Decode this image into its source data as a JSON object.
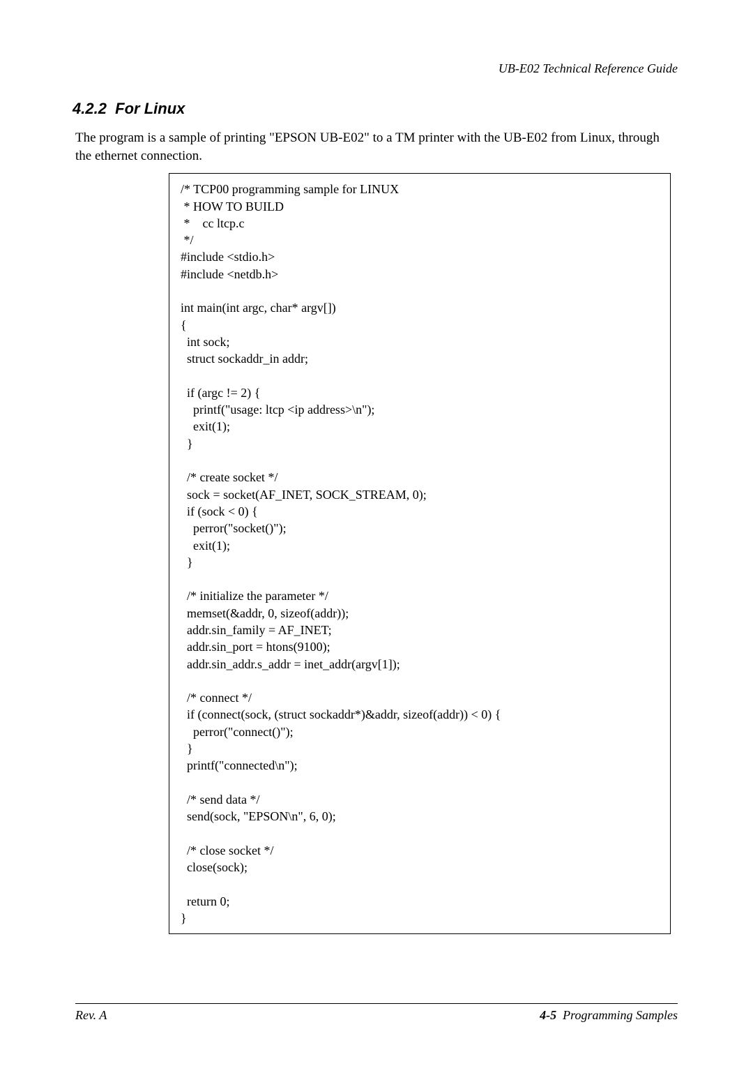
{
  "header": {
    "doc_title": "UB-E02 Technical Reference Guide"
  },
  "section": {
    "number": "4.2.2",
    "title": "For Linux"
  },
  "intro": "The program is a sample of printing \"EPSON UB-E02\" to a TM printer with the UB-E02 from Linux, through the ethernet connection.",
  "code": "/* TCP00 programming sample for LINUX\n * HOW TO BUILD\n *    cc ltcp.c\n */\n#include <stdio.h>\n#include <netdb.h>\n\nint main(int argc, char* argv[])\n{\n  int sock;\n  struct sockaddr_in addr;\n\n  if (argc != 2) {\n    printf(\"usage: ltcp <ip address>\\n\");\n    exit(1);\n  }\n\n  /* create socket */\n  sock = socket(AF_INET, SOCK_STREAM, 0);\n  if (sock < 0) {\n    perror(\"socket()\");\n    exit(1);\n  }\n\n  /* initialize the parameter */\n  memset(&addr, 0, sizeof(addr));\n  addr.sin_family = AF_INET;\n  addr.sin_port = htons(9100);\n  addr.sin_addr.s_addr = inet_addr(argv[1]);\n\n  /* connect */\n  if (connect(sock, (struct sockaddr*)&addr, sizeof(addr)) < 0) {\n    perror(\"connect()\");\n  }\n  printf(\"connected\\n\");\n\n  /* send data */\n  send(sock, \"EPSON\\n\", 6, 0);\n\n  /* close socket */\n  close(sock);\n\n  return 0;\n}",
  "footer": {
    "left": "Rev. A",
    "page_num": "4-5",
    "chapter": "Programming Samples"
  }
}
